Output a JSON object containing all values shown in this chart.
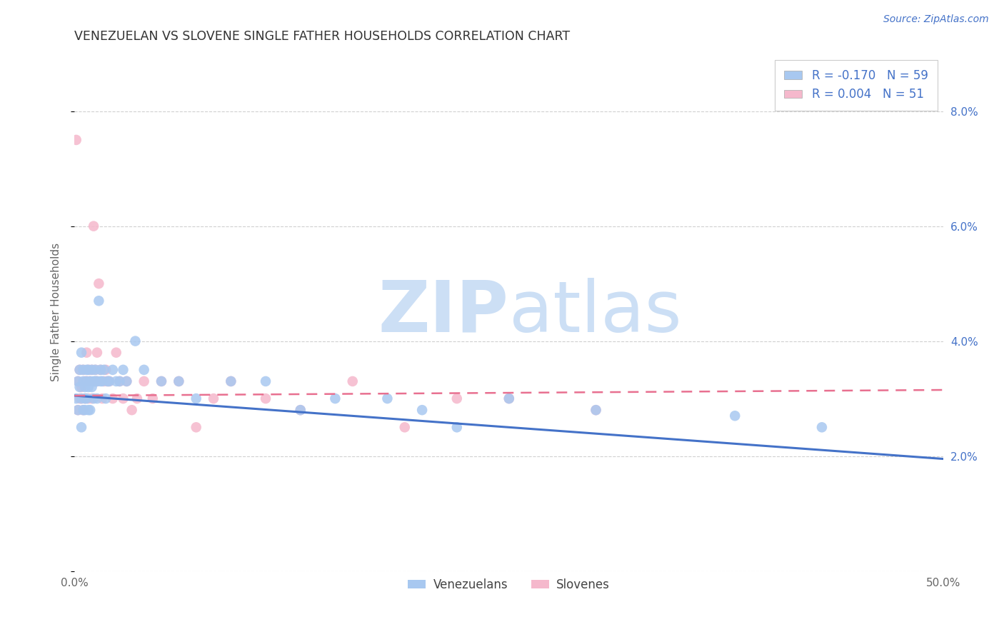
{
  "title": "VENEZUELAN VS SLOVENE SINGLE FATHER HOUSEHOLDS CORRELATION CHART",
  "source": "Source: ZipAtlas.com",
  "ylabel": "Single Father Households",
  "xlim": [
    0.0,
    0.5
  ],
  "ylim": [
    0.0,
    0.09
  ],
  "xticks": [
    0.0,
    0.1,
    0.2,
    0.3,
    0.4,
    0.5
  ],
  "xticklabels": [
    "0.0%",
    "",
    "",
    "",
    "",
    "50.0%"
  ],
  "yticks": [
    0.0,
    0.02,
    0.04,
    0.06,
    0.08
  ],
  "yticklabels_right": [
    "",
    "2.0%",
    "4.0%",
    "6.0%",
    "8.0%"
  ],
  "legend_r1": "R = -0.170",
  "legend_n1": "N = 59",
  "legend_r2": "R = 0.004",
  "legend_n2": "N = 51",
  "color_venezuelan": "#a8c8f0",
  "color_slovene": "#f5b8cc",
  "color_line_venezuelan": "#4472c8",
  "color_line_slovene": "#e87090",
  "background_color": "#ffffff",
  "grid_color": "#d0d0d0",
  "watermark_zip": "ZIP",
  "watermark_atlas": "atlas",
  "watermark_color": "#ccdff5",
  "venezuelan_x": [
    0.001,
    0.002,
    0.002,
    0.003,
    0.003,
    0.004,
    0.004,
    0.004,
    0.005,
    0.005,
    0.005,
    0.006,
    0.006,
    0.006,
    0.007,
    0.007,
    0.007,
    0.008,
    0.008,
    0.008,
    0.009,
    0.009,
    0.01,
    0.01,
    0.011,
    0.011,
    0.012,
    0.012,
    0.013,
    0.013,
    0.014,
    0.015,
    0.015,
    0.016,
    0.017,
    0.018,
    0.019,
    0.02,
    0.022,
    0.024,
    0.026,
    0.028,
    0.03,
    0.035,
    0.04,
    0.05,
    0.06,
    0.07,
    0.09,
    0.11,
    0.13,
    0.15,
    0.18,
    0.2,
    0.22,
    0.25,
    0.3,
    0.38,
    0.43
  ],
  "venezuelan_y": [
    0.03,
    0.033,
    0.028,
    0.032,
    0.035,
    0.03,
    0.025,
    0.038,
    0.033,
    0.028,
    0.035,
    0.032,
    0.03,
    0.028,
    0.033,
    0.035,
    0.03,
    0.028,
    0.032,
    0.035,
    0.033,
    0.028,
    0.035,
    0.032,
    0.033,
    0.03,
    0.035,
    0.033,
    0.03,
    0.033,
    0.047,
    0.033,
    0.035,
    0.033,
    0.035,
    0.03,
    0.033,
    0.033,
    0.035,
    0.033,
    0.033,
    0.035,
    0.033,
    0.04,
    0.035,
    0.033,
    0.033,
    0.03,
    0.033,
    0.033,
    0.028,
    0.03,
    0.03,
    0.028,
    0.025,
    0.03,
    0.028,
    0.027,
    0.025
  ],
  "slovene_x": [
    0.001,
    0.002,
    0.002,
    0.003,
    0.003,
    0.004,
    0.004,
    0.005,
    0.005,
    0.006,
    0.006,
    0.007,
    0.007,
    0.008,
    0.008,
    0.009,
    0.01,
    0.01,
    0.011,
    0.012,
    0.012,
    0.013,
    0.013,
    0.014,
    0.015,
    0.016,
    0.017,
    0.018,
    0.019,
    0.02,
    0.022,
    0.024,
    0.026,
    0.028,
    0.03,
    0.033,
    0.036,
    0.04,
    0.045,
    0.05,
    0.06,
    0.07,
    0.08,
    0.09,
    0.11,
    0.13,
    0.16,
    0.19,
    0.22,
    0.25,
    0.3
  ],
  "slovene_y": [
    0.075,
    0.033,
    0.028,
    0.03,
    0.035,
    0.032,
    0.03,
    0.035,
    0.028,
    0.033,
    0.03,
    0.038,
    0.033,
    0.03,
    0.035,
    0.033,
    0.03,
    0.035,
    0.06,
    0.033,
    0.035,
    0.038,
    0.033,
    0.05,
    0.035,
    0.03,
    0.033,
    0.035,
    0.033,
    0.033,
    0.03,
    0.038,
    0.033,
    0.03,
    0.033,
    0.028,
    0.03,
    0.033,
    0.03,
    0.033,
    0.033,
    0.025,
    0.03,
    0.033,
    0.03,
    0.028,
    0.033,
    0.025,
    0.03,
    0.03,
    0.028
  ]
}
